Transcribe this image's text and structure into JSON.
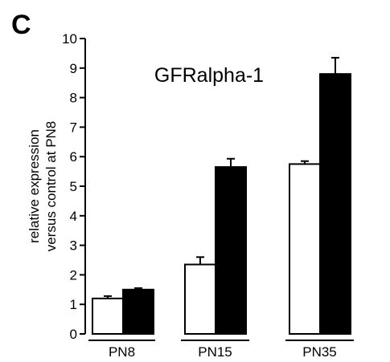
{
  "panel_letter": "C",
  "chart_data": {
    "type": "bar",
    "title": "GFRalpha-1",
    "ylabel_lines": [
      "relative expression",
      "versus control at PN8"
    ],
    "xlabel": "",
    "categories": [
      "PN8",
      "PN15",
      "PN35"
    ],
    "series": [
      {
        "color": "#ffffff",
        "values": [
          1.2,
          2.35,
          5.75
        ],
        "errors": [
          0.08,
          0.25,
          0.1
        ]
      },
      {
        "color": "#000000",
        "values": [
          1.5,
          5.65,
          8.8
        ],
        "errors": [
          0.05,
          0.28,
          0.55
        ]
      }
    ],
    "ylim": [
      0,
      10
    ],
    "yticks": [
      0,
      1,
      2,
      3,
      4,
      5,
      6,
      7,
      8,
      9,
      10
    ],
    "grid": false,
    "legend": "none"
  }
}
